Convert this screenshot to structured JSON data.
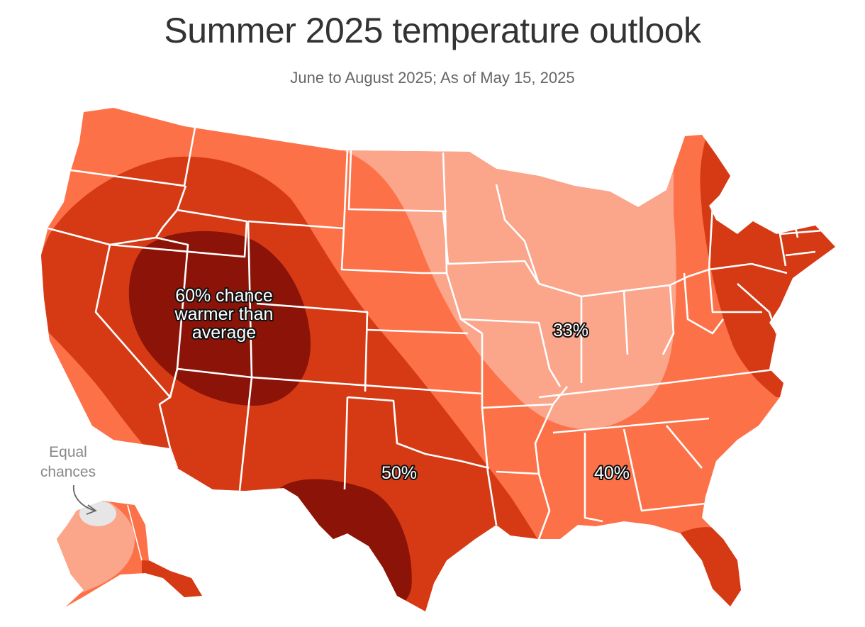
{
  "title": "Summer 2025 temperature outlook",
  "subtitle": "June to August 2025; As of May 15, 2025",
  "labels": {
    "p60_line1": "60% chance",
    "p60_line2": "warmer than",
    "p60_line3": "average",
    "p33": "33%",
    "p50": "50%",
    "p40": "40%",
    "equal_line1": "Equal",
    "equal_line2": "chances"
  },
  "colors": {
    "prob_33": "#fba58b",
    "prob_40": "#fd7148",
    "prob_50": "#d53a15",
    "prob_60": "#8c1307",
    "equal_chances": "#e6e6e6",
    "borders": "#ffffff"
  },
  "legend_levels": [
    "33%",
    "40%",
    "50%",
    "60%"
  ]
}
